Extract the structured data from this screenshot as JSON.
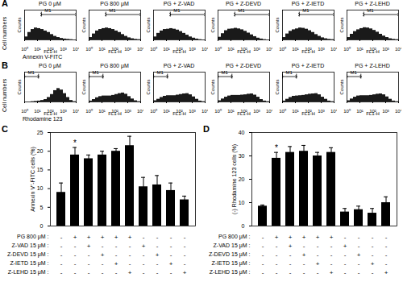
{
  "chart_data": [
    {
      "type": "histogram",
      "label": "A",
      "ylabel": "Cell numbers",
      "row_title": "Annexin V-FITC",
      "panel_xlabel": "FL1-H",
      "panel_ylabel": "Counts",
      "log": "x",
      "xlim": [
        1,
        10000
      ],
      "xticks": [
        {
          "value": 1,
          "label": "10⁰"
        },
        {
          "value": 10,
          "label": "10¹"
        },
        {
          "value": 100,
          "label": "10²"
        },
        {
          "value": 1000,
          "label": "10³"
        },
        {
          "value": 10000,
          "label": "10⁴"
        }
      ],
      "ylim": [
        0,
        100
      ],
      "tick_labels": "x",
      "color": "#1a1a1a",
      "bins": [
        1,
        1.778,
        3.162,
        5.623,
        10,
        17.78,
        31.62,
        56.23,
        100,
        177.8,
        316.2,
        562.3,
        1000,
        1778,
        3162,
        5623,
        10000
      ],
      "gate": {
        "label": "M1",
        "range": [
          20,
          10000
        ]
      },
      "panels": [
        {
          "title": "PG 0 μM",
          "counts": [
            10,
            25,
            35,
            40,
            38,
            35,
            30,
            25,
            18,
            12,
            8,
            5,
            3,
            2,
            1,
            0
          ]
        },
        {
          "title": "PG 800 μM",
          "counts": [
            8,
            20,
            30,
            35,
            38,
            40,
            38,
            35,
            30,
            25,
            18,
            12,
            7,
            4,
            2,
            1
          ]
        },
        {
          "title": "PG + Z-VAD",
          "counts": [
            10,
            22,
            30,
            35,
            36,
            38,
            36,
            33,
            28,
            22,
            16,
            10,
            6,
            3,
            1,
            0
          ]
        },
        {
          "title": "PG + Z-DEVD",
          "counts": [
            9,
            21,
            31,
            36,
            37,
            39,
            37,
            34,
            29,
            23,
            17,
            11,
            6,
            3,
            1,
            0
          ]
        },
        {
          "title": "PG + Z-IETD",
          "counts": [
            8,
            20,
            29,
            34,
            37,
            40,
            39,
            36,
            31,
            25,
            18,
            12,
            7,
            4,
            2,
            1
          ]
        },
        {
          "title": "PG + Z-LEHD",
          "counts": [
            8,
            19,
            28,
            34,
            38,
            41,
            40,
            37,
            32,
            26,
            19,
            13,
            8,
            4,
            2,
            1
          ]
        }
      ]
    },
    {
      "type": "histogram",
      "label": "B",
      "ylabel": "Cell numbers",
      "row_title": "Rhodamine 123",
      "panel_xlabel": "FL1-H",
      "panel_ylabel": "Counts",
      "log": "x",
      "xlim": [
        1,
        10000
      ],
      "xticks": [
        {
          "value": 1,
          "label": "10⁰"
        },
        {
          "value": 10,
          "label": "10¹"
        },
        {
          "value": 100,
          "label": "10²"
        },
        {
          "value": 1000,
          "label": "10³"
        },
        {
          "value": 10000,
          "label": "10⁴"
        }
      ],
      "ylim": [
        0,
        100
      ],
      "tick_labels": "x",
      "color": "#1a1a1a",
      "bins": [
        1,
        1.778,
        3.162,
        5.623,
        10,
        17.78,
        31.62,
        56.23,
        100,
        177.8,
        316.2,
        562.3,
        1000,
        1778,
        3162,
        5623,
        10000
      ],
      "gate": {
        "label": "M1",
        "range": [
          1,
          12
        ]
      },
      "panels": [
        {
          "title": "PG 0 μM",
          "counts": [
            0,
            0,
            1,
            2,
            3,
            5,
            8,
            15,
            25,
            38,
            45,
            40,
            28,
            15,
            5,
            1
          ]
        },
        {
          "title": "PG 800 μM",
          "counts": [
            3,
            8,
            14,
            18,
            20,
            20,
            20,
            22,
            25,
            28,
            30,
            26,
            18,
            10,
            4,
            1
          ]
        },
        {
          "title": "PG + Z-VAD",
          "counts": [
            4,
            9,
            15,
            19,
            21,
            21,
            21,
            23,
            25,
            27,
            28,
            24,
            17,
            9,
            3,
            1
          ]
        },
        {
          "title": "PG + Z-DEVD",
          "counts": [
            4,
            10,
            16,
            20,
            22,
            22,
            22,
            23,
            24,
            26,
            27,
            23,
            16,
            8,
            3,
            1
          ]
        },
        {
          "title": "PG + Z-IETD",
          "counts": [
            3,
            9,
            15,
            19,
            20,
            21,
            22,
            24,
            26,
            27,
            28,
            24,
            16,
            9,
            3,
            1
          ]
        },
        {
          "title": "PG + Z-LEHD",
          "counts": [
            4,
            10,
            16,
            20,
            21,
            21,
            21,
            22,
            24,
            26,
            27,
            24,
            17,
            9,
            3,
            1
          ]
        }
      ]
    },
    {
      "type": "bar",
      "label": "C",
      "ylabel": "Annexin V⁺-FITC cells (%)",
      "ylim": [
        0,
        25
      ],
      "yticks": [
        0,
        5,
        10,
        15,
        20,
        25
      ],
      "tick_labels": "y",
      "color": "#000000",
      "values": [
        9,
        19,
        18,
        19,
        20,
        21.5,
        10.5,
        11,
        9.5,
        7
      ],
      "errors": [
        2.5,
        2,
        1,
        1,
        0.7,
        2.5,
        2.5,
        2.5,
        2,
        1
      ],
      "annotations": [
        {
          "text": "*",
          "index": 1
        }
      ],
      "treatments": [
        {
          "label": "PG 800 μM :",
          "signs": [
            "-",
            "+",
            "+",
            "+",
            "+",
            "+",
            "-",
            "-",
            "-",
            "-"
          ]
        },
        {
          "label": "Z-VAD 15 μM :",
          "signs": [
            "-",
            "-",
            "+",
            "-",
            "-",
            "-",
            "+",
            "-",
            "-",
            "-"
          ]
        },
        {
          "label": "Z-DEVD 15 μM :",
          "signs": [
            "-",
            "-",
            "-",
            "+",
            "-",
            "-",
            "-",
            "+",
            "-",
            "-"
          ]
        },
        {
          "label": "Z-IETD 15 μM :",
          "signs": [
            "-",
            "-",
            "-",
            "-",
            "+",
            "-",
            "-",
            "-",
            "+",
            "-"
          ]
        },
        {
          "label": "Z-LEHD 15 μM :",
          "signs": [
            "-",
            "-",
            "-",
            "-",
            "-",
            "+",
            "-",
            "-",
            "-",
            "+"
          ]
        }
      ]
    },
    {
      "type": "bar",
      "label": "D",
      "ylabel": "(-) Rhodamine 123 cells (%)",
      "ylim": [
        0,
        40
      ],
      "yticks": [
        0,
        10,
        20,
        30,
        40
      ],
      "tick_labels": "y",
      "color": "#000000",
      "values": [
        8.5,
        29,
        31.5,
        32,
        30,
        31.5,
        6,
        7,
        5.5,
        10
      ],
      "errors": [
        0.5,
        2.5,
        2.5,
        2.5,
        1.5,
        2,
        1.5,
        1.5,
        2,
        2.5
      ],
      "annotations": [
        {
          "text": "*",
          "index": 1
        }
      ],
      "treatments": [
        {
          "label": "PG 800 μM :",
          "signs": [
            "-",
            "+",
            "+",
            "+",
            "+",
            "+",
            "-",
            "-",
            "-",
            "-"
          ]
        },
        {
          "label": "Z-VAD 15 μM :",
          "signs": [
            "-",
            "-",
            "+",
            "-",
            "-",
            "-",
            "+",
            "-",
            "-",
            "-"
          ]
        },
        {
          "label": "Z-DEVD 15 μM :",
          "signs": [
            "-",
            "-",
            "-",
            "+",
            "-",
            "-",
            "-",
            "+",
            "-",
            "-"
          ]
        },
        {
          "label": "Z-IETD 15 μM :",
          "signs": [
            "-",
            "-",
            "-",
            "-",
            "+",
            "-",
            "-",
            "-",
            "+",
            "-"
          ]
        },
        {
          "label": "Z-LEHD 15 μM :",
          "signs": [
            "-",
            "-",
            "-",
            "-",
            "-",
            "+",
            "-",
            "-",
            "-",
            "+"
          ]
        }
      ]
    }
  ]
}
